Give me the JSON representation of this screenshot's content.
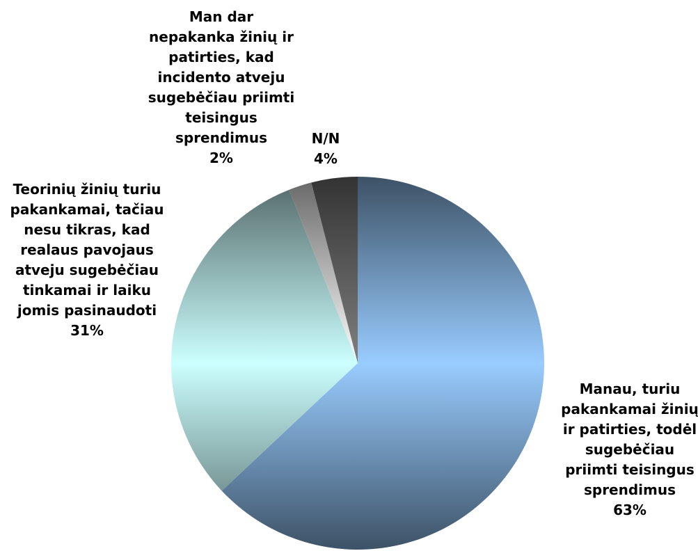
{
  "chart_data": {
    "type": "pie",
    "categories": [
      "Manau, turiu pakankamai žinių ir patirties, todėl sugebėčiau priimti teisingus sprendimus",
      "Teorinių žinių turiu pakankamai, tačiau nesu tikras, kad realaus pavojaus atveju sugebėčiau tinkamai ir laiku jomis pasinaudoti",
      "Man dar nepakanka žinių ir patirties, kad incidento atveju sugebėčiau priimti teisingus sprendimus",
      "N/N"
    ],
    "values": [
      63,
      31,
      2,
      4
    ],
    "value_labels": [
      "63%",
      "31%",
      "2%",
      "4%"
    ],
    "colors": [
      "#99ccff",
      "#ccffff",
      "#ffffff",
      "#808080"
    ]
  }
}
